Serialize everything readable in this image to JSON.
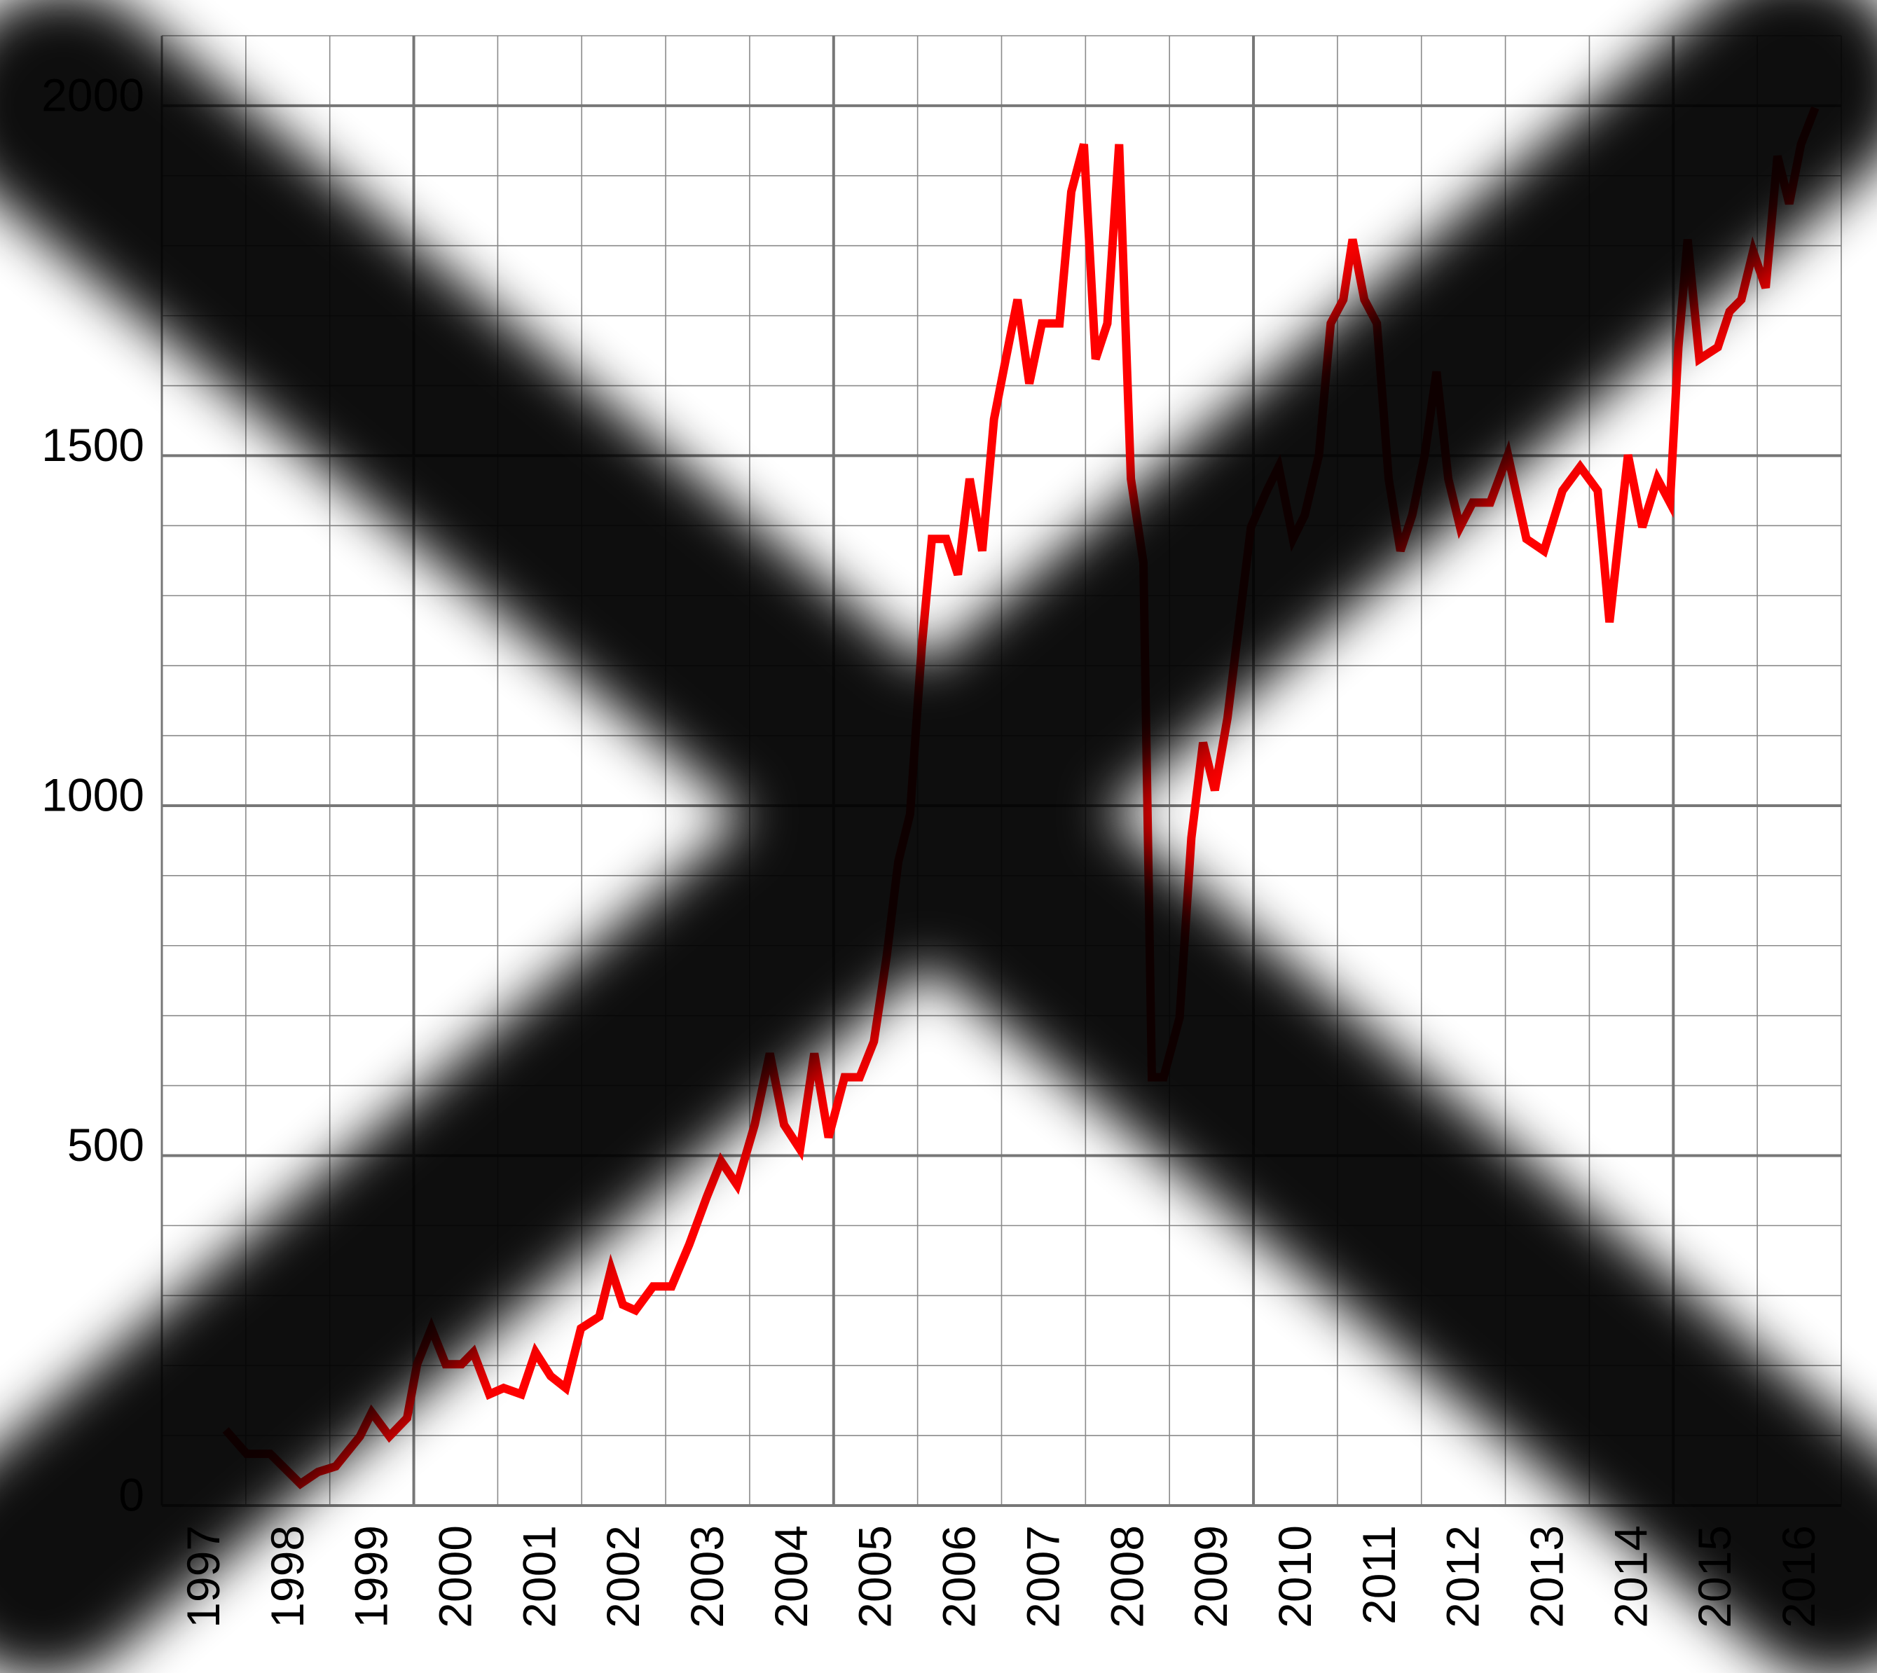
{
  "chart_data": {
    "type": "line",
    "x": [
      1997.76,
      1998.01,
      1998.29,
      1998.65,
      1998.86,
      1999.07,
      1999.36,
      1999.5,
      1999.71,
      1999.92,
      2000.04,
      2000.21,
      2000.38,
      2000.57,
      2000.71,
      2000.9,
      2001.07,
      2001.28,
      2001.45,
      2001.63,
      2001.81,
      2001.99,
      2002.21,
      2002.35,
      2002.49,
      2002.64,
      2002.85,
      2003.07,
      2003.28,
      2003.49,
      2003.66,
      2003.85,
      2004.06,
      2004.24,
      2004.41,
      2004.6,
      2004.77,
      2004.94,
      2005.13,
      2005.31,
      2005.48,
      2005.63,
      2005.77,
      2005.91,
      2006.05,
      2006.17,
      2006.34,
      2006.48,
      2006.62,
      2006.77,
      2006.91,
      2007.05,
      2007.19,
      2007.33,
      2007.48,
      2007.69,
      2007.83,
      2007.98,
      2008.12,
      2008.26,
      2008.4,
      2008.54,
      2008.69,
      2008.79,
      2008.93,
      2009.12,
      2009.26,
      2009.4,
      2009.54,
      2009.69,
      2009.83,
      2009.97,
      2010.16,
      2010.3,
      2010.47,
      2010.61,
      2010.78,
      2010.92,
      2011.07,
      2011.18,
      2011.32,
      2011.47,
      2011.61,
      2011.75,
      2011.89,
      2012.04,
      2012.18,
      2012.32,
      2012.46,
      2012.61,
      2012.82,
      2013.03,
      2013.25,
      2013.46,
      2013.68,
      2013.89,
      2014.1,
      2014.24,
      2014.46,
      2014.63,
      2014.81,
      2014.96,
      2015.06,
      2015.17,
      2015.31,
      2015.53,
      2015.67,
      2015.81,
      2015.95,
      2016.1,
      2016.24,
      2016.38,
      2016.52,
      2016.69
    ],
    "values": [
      108,
      74,
      74,
      31,
      48,
      56,
      99,
      133,
      99,
      125,
      202,
      253,
      202,
      202,
      219,
      159,
      168,
      159,
      219,
      185,
      168,
      253,
      270,
      338,
      287,
      279,
      313,
      313,
      373,
      441,
      492,
      458,
      544,
      646,
      544,
      509,
      646,
      526,
      612,
      612,
      663,
      783,
      920,
      988,
      1227,
      1381,
      1381,
      1330,
      1467,
      1364,
      1552,
      1638,
      1723,
      1603,
      1689,
      1689,
      1877,
      1945,
      1638,
      1689,
      1945,
      1467,
      1347,
      612,
      612,
      697,
      954,
      1090,
      1022,
      1125,
      1262,
      1398,
      1450,
      1484,
      1381,
      1415,
      1501,
      1689,
      1723,
      1809,
      1723,
      1689,
      1467,
      1364,
      1415,
      1501,
      1620,
      1467,
      1398,
      1433,
      1433,
      1501,
      1381,
      1364,
      1450,
      1484,
      1450,
      1262,
      1501,
      1398,
      1467,
      1433,
      1655,
      1809,
      1638,
      1655,
      1706,
      1723,
      1792,
      1740,
      1928,
      1860,
      1945,
      1997
    ],
    "color": "#ff0000",
    "xlim": [
      1997,
      2017
    ],
    "ylim": [
      0,
      2100
    ],
    "yticks": [
      0,
      500,
      1000,
      1500,
      2000
    ],
    "yminorticks": [
      100,
      200,
      300,
      400,
      600,
      700,
      800,
      900,
      1100,
      1200,
      1300,
      1400,
      1600,
      1700,
      1800,
      1900,
      2100
    ],
    "xticks": [
      1997,
      1998,
      1999,
      2000,
      2001,
      2002,
      2003,
      2004,
      2005,
      2006,
      2007,
      2008,
      2009,
      2010,
      2011,
      2012,
      2013,
      2014,
      2015,
      2016
    ],
    "xmajorticks": [
      2000,
      2005,
      2010,
      2015
    ],
    "grid": true
  }
}
